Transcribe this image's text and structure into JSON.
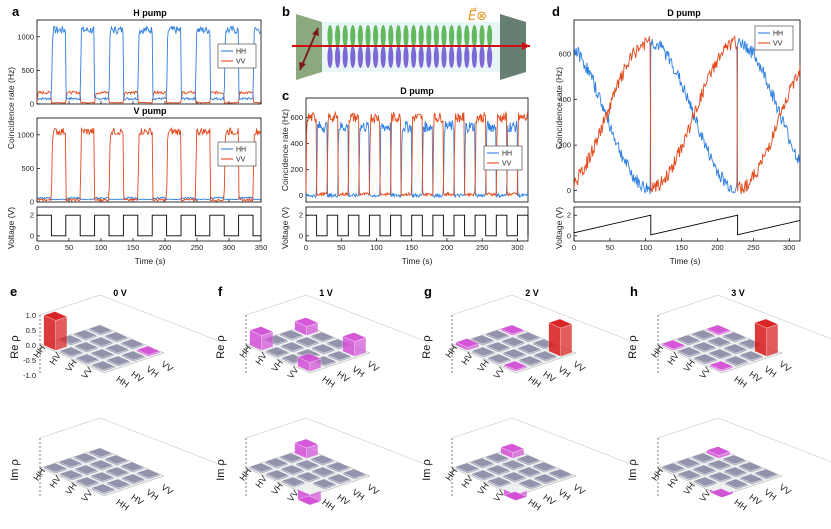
{
  "colors": {
    "HH": "#2f7fe0",
    "VV": "#e2491b",
    "voltage": "#000000",
    "dm_red": "#d81a1a",
    "dm_pink": "#d24fd6",
    "dm_grey": "#8f8fa8"
  },
  "panels": {
    "a": {
      "label": "a",
      "top_title": "H pump",
      "bottom_title": "V pump",
      "ylabel": "Coincidence rate (Hz)",
      "vlabel": "Voltage (V)",
      "xlabel": "Time (s)"
    },
    "b": {
      "label": "b",
      "field_symbol": "E⃗⊗"
    },
    "c": {
      "label": "c",
      "title": "D pump",
      "ylabel": "Coincidence rate (Hz)",
      "vlabel": "Voltage (V)",
      "xlabel": "Time (s)"
    },
    "d": {
      "label": "d",
      "title": "D pump",
      "ylabel": "Coincidence rate (Hz)",
      "vlabel": "Voltage (V)",
      "xlabel": "Time (s)"
    },
    "e": {
      "label": "e",
      "title": "0 V"
    },
    "f": {
      "label": "f",
      "title": "1 V"
    },
    "g": {
      "label": "g",
      "title": "2 V"
    },
    "h": {
      "label": "h",
      "title": "3 V"
    }
  },
  "legend": [
    "HH",
    "VV"
  ],
  "chart_data": [
    {
      "id": "a_top",
      "type": "line",
      "title": "H pump",
      "ylabel": "Coincidence rate (Hz)",
      "xlim": [
        0,
        350
      ],
      "ylim": [
        0,
        1250
      ],
      "yticks": [
        0,
        500,
        1000
      ],
      "xticks": [
        0,
        50,
        100,
        150,
        200,
        250,
        300,
        350
      ],
      "legend": [
        "HH",
        "VV"
      ],
      "series": [
        {
          "name": "HH",
          "high": 1100,
          "low": 80,
          "phase": "on_when_voltage_low"
        },
        {
          "name": "VV",
          "high": 180,
          "low": 20,
          "phase": "on_when_voltage_high"
        }
      ],
      "period_s": 45
    },
    {
      "id": "a_bottom",
      "type": "line",
      "title": "V pump",
      "ylabel": "Coincidence rate (Hz)",
      "xlim": [
        0,
        350
      ],
      "ylim": [
        0,
        1250
      ],
      "yticks": [
        0,
        500,
        1000
      ],
      "xticks": [
        0,
        50,
        100,
        150,
        200,
        250,
        300,
        350
      ],
      "legend": [
        "HH",
        "VV"
      ],
      "series": [
        {
          "name": "HH",
          "high": 60,
          "low": 40
        },
        {
          "name": "VV",
          "high": 1050,
          "low": 30,
          "phase": "on_when_voltage_low"
        }
      ],
      "period_s": 45
    },
    {
      "id": "a_voltage",
      "type": "line",
      "ylabel": "Voltage (V)",
      "xlabel": "Time (s)",
      "xlim": [
        0,
        350
      ],
      "ylim": [
        -0.5,
        2.8
      ],
      "yticks": [
        0,
        2
      ],
      "xticks": [
        0,
        50,
        100,
        150,
        200,
        250,
        300,
        350
      ],
      "square_wave": {
        "high": 2,
        "low": 0,
        "period_s": 45,
        "start_high_s": 0
      }
    },
    {
      "id": "c_top",
      "type": "line",
      "title": "D pump",
      "ylabel": "Coincidence rate (Hz)",
      "xlim": [
        0,
        315
      ],
      "ylim": [
        -50,
        750
      ],
      "yticks": [
        0,
        200,
        400,
        600
      ],
      "legend": [
        "HH",
        "VV"
      ],
      "series": [
        {
          "name": "HH",
          "high": 530,
          "low": 0
        },
        {
          "name": "VV",
          "high": 600,
          "low": 10
        }
      ],
      "period_s": 30
    },
    {
      "id": "c_voltage",
      "type": "line",
      "ylabel": "Voltage (V)",
      "xlabel": "Time (s)",
      "xlim": [
        0,
        315
      ],
      "ylim": [
        -0.5,
        2.8
      ],
      "yticks": [
        0,
        2
      ],
      "xticks": [
        0,
        50,
        100,
        150,
        200,
        250,
        300
      ],
      "square_wave": {
        "high": 2,
        "low": 0,
        "period_s": 30,
        "start_high_s": 0
      }
    },
    {
      "id": "d_top",
      "type": "line",
      "title": "D pump",
      "ylabel": "Coincidence rate (Hz)",
      "xlim": [
        0,
        315
      ],
      "ylim": [
        -50,
        750
      ],
      "yticks": [
        0,
        200,
        400,
        600
      ],
      "legend": [
        "HH",
        "VV"
      ],
      "series": [
        {
          "name": "HH",
          "note": "oscillates 650→10 between resets"
        },
        {
          "name": "VV",
          "note": "oscillates 10→650 between resets"
        }
      ]
    },
    {
      "id": "d_voltage",
      "type": "line",
      "ylabel": "Voltage (V)",
      "xlabel": "Time (s)",
      "xlim": [
        0,
        315
      ],
      "ylim": [
        -0.5,
        2.8
      ],
      "yticks": [
        0,
        2
      ],
      "xticks": [
        0,
        50,
        100,
        150,
        200,
        250,
        300
      ],
      "sawtooth": {
        "resets_s": [
          107,
          228
        ],
        "rise_per_period": 1.8,
        "start": 0.3
      }
    },
    {
      "id": "dm_e_re",
      "type": "bar3d",
      "zlabel": "Re ρ",
      "basis": [
        "HH",
        "HV",
        "VH",
        "VV"
      ],
      "zlim": [
        -1,
        1
      ],
      "zticks": [
        "1.0",
        "0.5",
        "0.0",
        "-0.5",
        "-1.0"
      ],
      "values": [
        [
          1.0,
          0,
          0,
          0
        ],
        [
          0,
          0,
          0,
          0
        ],
        [
          0,
          0,
          0,
          0
        ],
        [
          0,
          0,
          0,
          0.03
        ]
      ]
    },
    {
      "id": "dm_e_im",
      "type": "bar3d",
      "zlabel": "Im ρ",
      "basis": [
        "HH",
        "HV",
        "VH",
        "VV"
      ],
      "zlim": [
        -1,
        1
      ],
      "values": [
        [
          0,
          0,
          0,
          0
        ],
        [
          0,
          0,
          0,
          0
        ],
        [
          0,
          0,
          0,
          0
        ],
        [
          0,
          0,
          0,
          0
        ]
      ]
    },
    {
      "id": "dm_f_re",
      "type": "bar3d",
      "zlabel": "Re ρ",
      "basis": [
        "HH",
        "HV",
        "VH",
        "VV"
      ],
      "zlim": [
        -1,
        1
      ],
      "values": [
        [
          0.5,
          0,
          0,
          0.3
        ],
        [
          0,
          0,
          0,
          0
        ],
        [
          0,
          0,
          0,
          0
        ],
        [
          0.3,
          0,
          0,
          0.5
        ]
      ]
    },
    {
      "id": "dm_f_im",
      "type": "bar3d",
      "zlabel": "Im ρ",
      "basis": [
        "HH",
        "HV",
        "VH",
        "VV"
      ],
      "zlim": [
        -1,
        1
      ],
      "values": [
        [
          0,
          0,
          0,
          0.35
        ],
        [
          0,
          0,
          0,
          0
        ],
        [
          0,
          0,
          0,
          0
        ],
        [
          -0.35,
          0,
          0,
          0
        ]
      ]
    },
    {
      "id": "dm_g_re",
      "type": "bar3d",
      "zlabel": "Re ρ",
      "basis": [
        "HH",
        "HV",
        "VH",
        "VV"
      ],
      "zlim": [
        -1,
        1
      ],
      "values": [
        [
          0.1,
          0,
          0,
          0.05
        ],
        [
          0,
          0,
          0,
          0
        ],
        [
          0,
          0,
          0,
          0
        ],
        [
          0.05,
          0,
          0,
          0.95
        ]
      ]
    },
    {
      "id": "dm_g_im",
      "type": "bar3d",
      "zlabel": "Im ρ",
      "basis": [
        "HH",
        "HV",
        "VH",
        "VV"
      ],
      "zlim": [
        -1,
        1
      ],
      "values": [
        [
          0,
          0,
          0,
          0.2
        ],
        [
          0,
          0,
          0,
          0
        ],
        [
          0,
          0,
          0,
          0
        ],
        [
          -0.2,
          0,
          0,
          0
        ]
      ]
    },
    {
      "id": "dm_h_re",
      "type": "bar3d",
      "zlabel": "Re ρ",
      "basis": [
        "HH",
        "HV",
        "VH",
        "VV"
      ],
      "zlim": [
        -1,
        1
      ],
      "values": [
        [
          0.05,
          0,
          0,
          0.02
        ],
        [
          0,
          0,
          0,
          0
        ],
        [
          0,
          0,
          0,
          0
        ],
        [
          0.02,
          0,
          0,
          0.95
        ]
      ]
    },
    {
      "id": "dm_h_im",
      "type": "bar3d",
      "zlabel": "Im ρ",
      "basis": [
        "HH",
        "HV",
        "VH",
        "VV"
      ],
      "zlim": [
        -1,
        1
      ],
      "values": [
        [
          0,
          0,
          0,
          0.1
        ],
        [
          0,
          0,
          0,
          0
        ],
        [
          0,
          0,
          0,
          0
        ],
        [
          -0.1,
          0,
          0,
          0
        ]
      ]
    }
  ]
}
